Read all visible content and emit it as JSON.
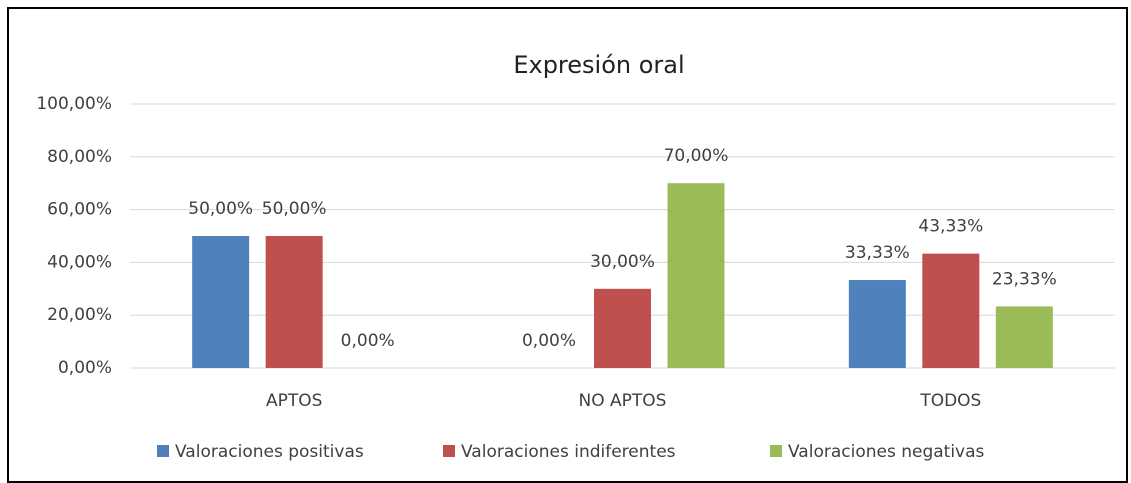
{
  "chart_data": {
    "type": "bar",
    "title": "Expresión oral",
    "categories": [
      "APTOS",
      "NO APTOS",
      "TODOS"
    ],
    "series": [
      {
        "name": "Valoraciones positivas",
        "color": "#4f81bd",
        "values": [
          50,
          0,
          33.33
        ],
        "value_labels": [
          "50,00%",
          "0,00%",
          "33,33%"
        ]
      },
      {
        "name": "Valoraciones indiferentes",
        "color": "#c0504d",
        "values": [
          50,
          30,
          43.33
        ],
        "value_labels": [
          "50,00%",
          "30,00%",
          "43,33%"
        ]
      },
      {
        "name": "Valoraciones negativas",
        "color": "#9bbb59",
        "values": [
          0,
          70,
          23.33
        ],
        "value_labels": [
          "0,00%",
          "70,00%",
          "23,33%"
        ]
      }
    ],
    "ylim": [
      0,
      100
    ],
    "yticks": [
      {
        "value": 0,
        "label": "0,00%"
      },
      {
        "value": 20,
        "label": "20,00%"
      },
      {
        "value": 40,
        "label": "40,00%"
      },
      {
        "value": 60,
        "label": "60,00%"
      },
      {
        "value": 80,
        "label": "80,00%"
      },
      {
        "value": 100,
        "label": "100,00%"
      }
    ],
    "grid": true,
    "legend": "bottom"
  }
}
